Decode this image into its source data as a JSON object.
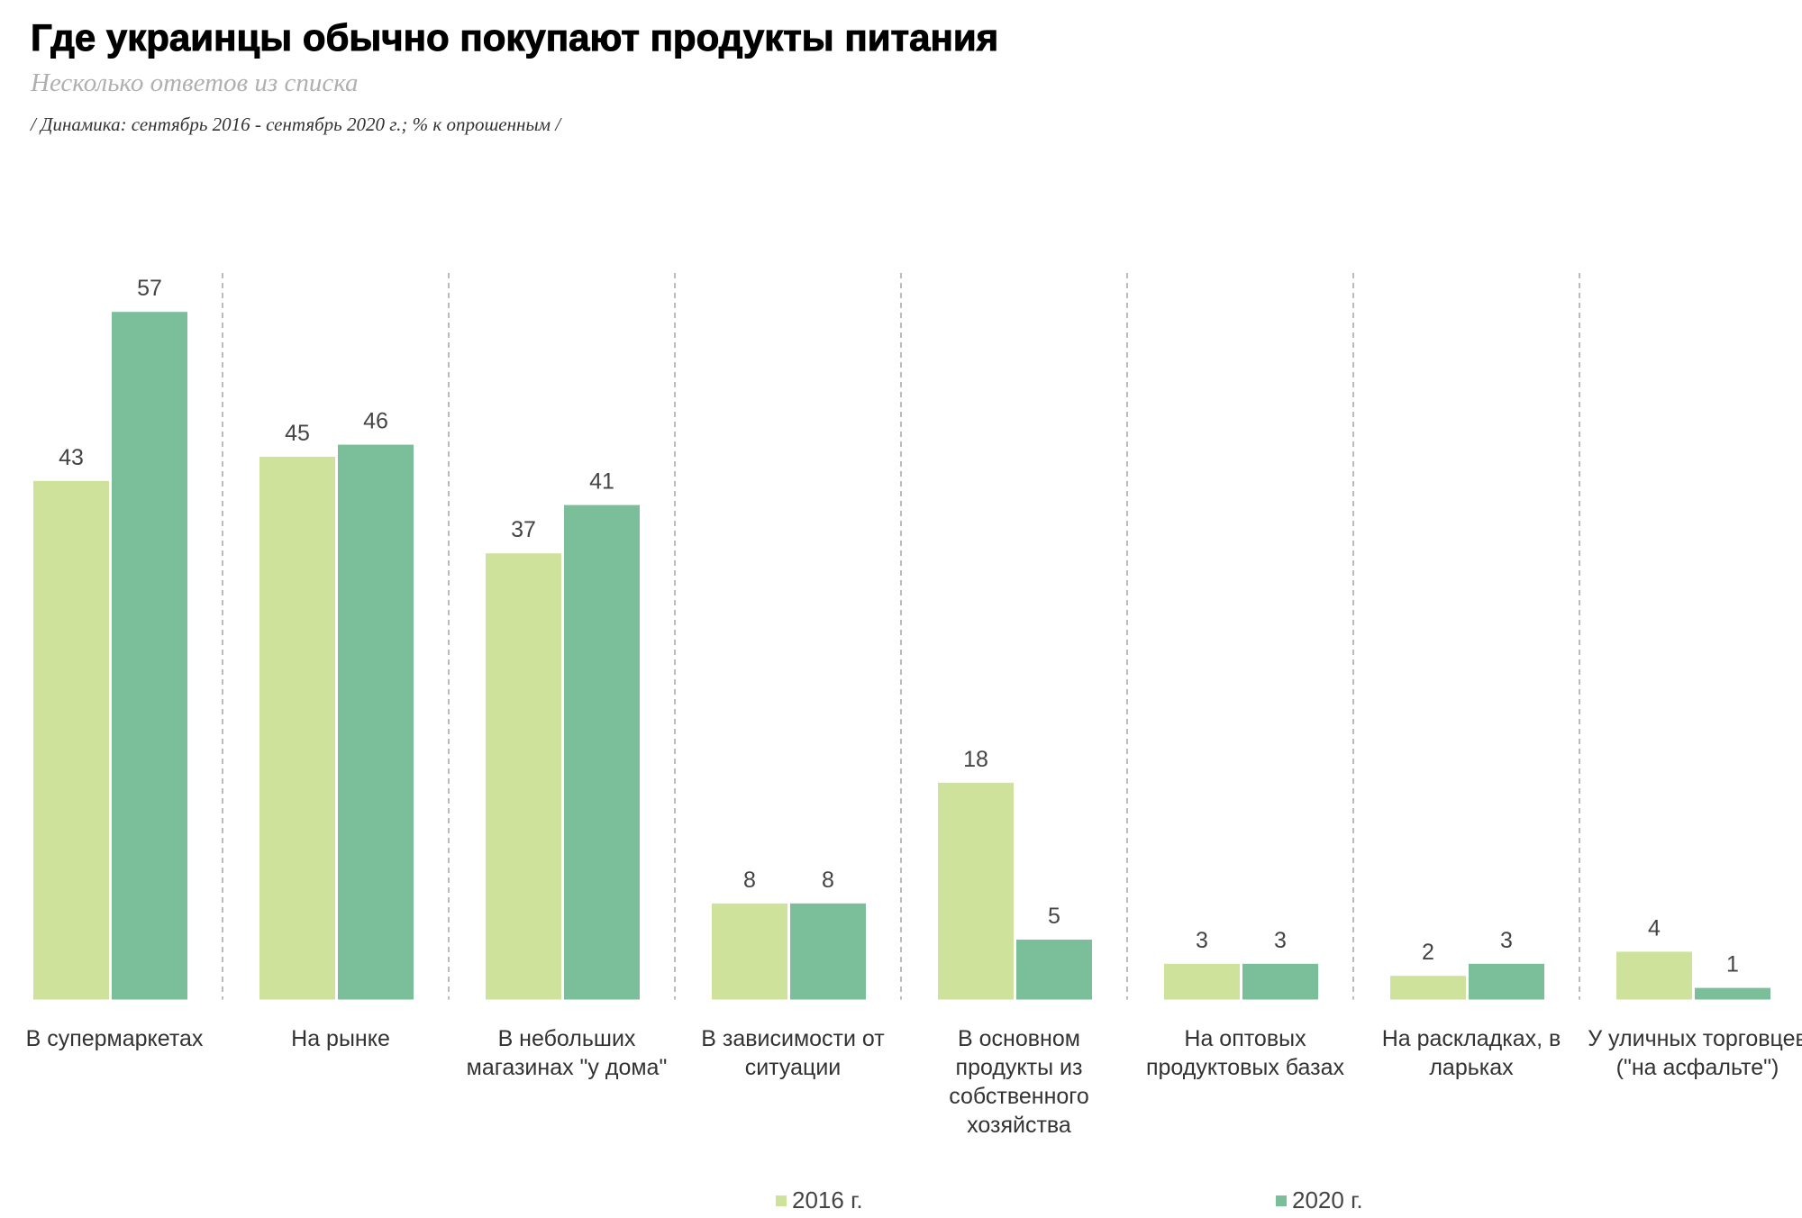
{
  "chart_data": {
    "type": "bar",
    "title": "Где украинцы обычно покупают продукты питания",
    "subtitle": "Несколько ответов из списка",
    "note": "/ Динамика: сентябрь 2016 - сентябрь 2020 г.; % к опрошенным /",
    "categories": [
      "В супермаркетах",
      "На рынке",
      "В небольших магазинах \"у дома\"",
      "В зависимости от ситуации",
      "В основном продукты из собственного хозяйства",
      "На оптовых продуктовых базах",
      "На раскладках, в ларьках",
      "У уличных торговцев (\"на асфальте\")"
    ],
    "series": [
      {
        "name": "2016 г.",
        "color": "#cfe29c",
        "values": [
          43,
          45,
          37,
          8,
          18,
          3,
          2,
          4
        ]
      },
      {
        "name": "2020 г.",
        "color": "#7bbf9a",
        "values": [
          57,
          46,
          41,
          8,
          5,
          3,
          3,
          1
        ]
      }
    ],
    "legend": "bottom"
  }
}
